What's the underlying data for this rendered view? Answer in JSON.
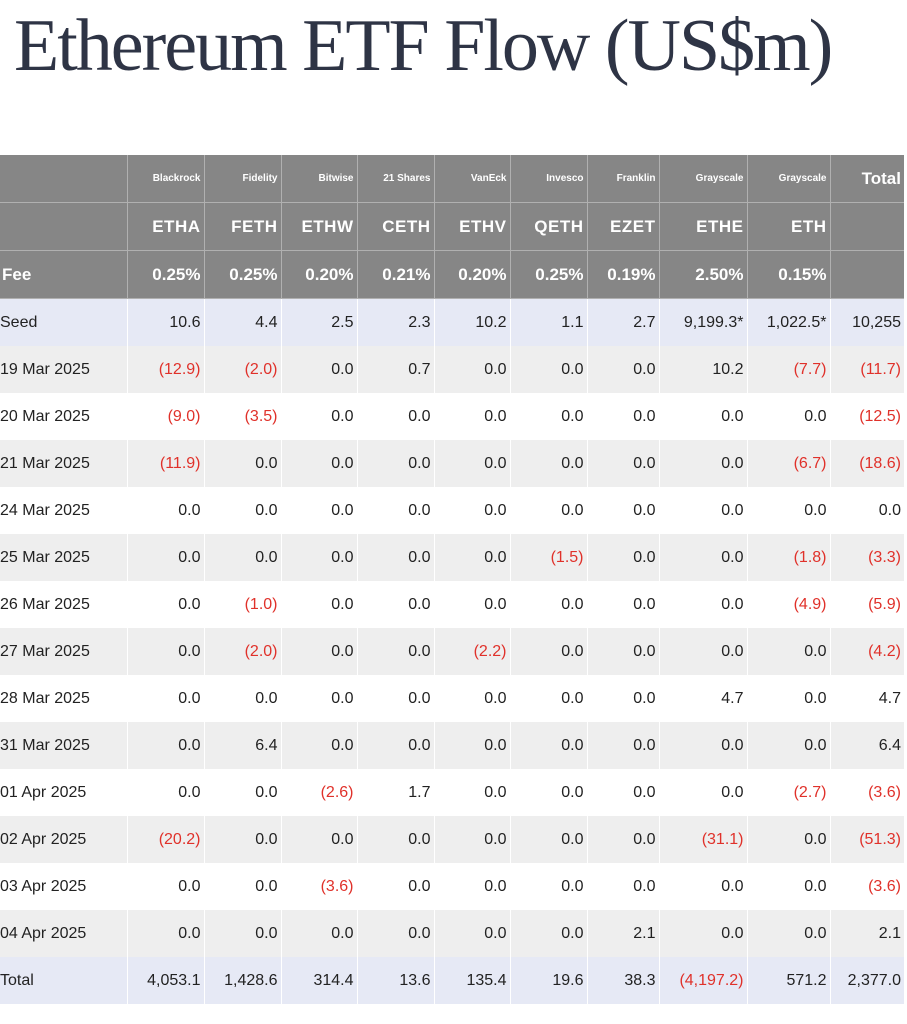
{
  "title": "Ethereum ETF Flow (US$m)",
  "header": {
    "issuers": [
      "",
      "Blackrock",
      "Fidelity",
      "Bitwise",
      "21 Shares",
      "VanEck",
      "Invesco",
      "Franklin",
      "Grayscale",
      "Grayscale",
      "Total"
    ],
    "tickers": [
      "",
      "ETHA",
      "FETH",
      "ETHW",
      "CETH",
      "ETHV",
      "QETH",
      "EZET",
      "ETHE",
      "ETH",
      ""
    ],
    "fees": [
      "Fee",
      "0.25%",
      "0.25%",
      "0.20%",
      "0.21%",
      "0.20%",
      "0.25%",
      "0.19%",
      "2.50%",
      "0.15%",
      ""
    ]
  },
  "rows": [
    [
      "Seed",
      "10.6",
      "4.4",
      "2.5",
      "2.3",
      "10.2",
      "1.1",
      "2.7",
      "9,199.3*",
      "1,022.5*",
      "10,255"
    ],
    [
      "19 Mar 2025",
      "(12.9)",
      "(2.0)",
      "0.0",
      "0.7",
      "0.0",
      "0.0",
      "0.0",
      "10.2",
      "(7.7)",
      "(11.7)"
    ],
    [
      "20 Mar 2025",
      "(9.0)",
      "(3.5)",
      "0.0",
      "0.0",
      "0.0",
      "0.0",
      "0.0",
      "0.0",
      "0.0",
      "(12.5)"
    ],
    [
      "21 Mar 2025",
      "(11.9)",
      "0.0",
      "0.0",
      "0.0",
      "0.0",
      "0.0",
      "0.0",
      "0.0",
      "(6.7)",
      "(18.6)"
    ],
    [
      "24 Mar 2025",
      "0.0",
      "0.0",
      "0.0",
      "0.0",
      "0.0",
      "0.0",
      "0.0",
      "0.0",
      "0.0",
      "0.0"
    ],
    [
      "25 Mar 2025",
      "0.0",
      "0.0",
      "0.0",
      "0.0",
      "0.0",
      "(1.5)",
      "0.0",
      "0.0",
      "(1.8)",
      "(3.3)"
    ],
    [
      "26 Mar 2025",
      "0.0",
      "(1.0)",
      "0.0",
      "0.0",
      "0.0",
      "0.0",
      "0.0",
      "0.0",
      "(4.9)",
      "(5.9)"
    ],
    [
      "27 Mar 2025",
      "0.0",
      "(2.0)",
      "0.0",
      "0.0",
      "(2.2)",
      "0.0",
      "0.0",
      "0.0",
      "0.0",
      "(4.2)"
    ],
    [
      "28 Mar 2025",
      "0.0",
      "0.0",
      "0.0",
      "0.0",
      "0.0",
      "0.0",
      "0.0",
      "4.7",
      "0.0",
      "4.7"
    ],
    [
      "31 Mar 2025",
      "0.0",
      "6.4",
      "0.0",
      "0.0",
      "0.0",
      "0.0",
      "0.0",
      "0.0",
      "0.0",
      "6.4"
    ],
    [
      "01 Apr 2025",
      "0.0",
      "0.0",
      "(2.6)",
      "1.7",
      "0.0",
      "0.0",
      "0.0",
      "0.0",
      "(2.7)",
      "(3.6)"
    ],
    [
      "02 Apr 2025",
      "(20.2)",
      "0.0",
      "0.0",
      "0.0",
      "0.0",
      "0.0",
      "0.0",
      "(31.1)",
      "0.0",
      "(51.3)"
    ],
    [
      "03 Apr 2025",
      "0.0",
      "0.0",
      "(3.6)",
      "0.0",
      "0.0",
      "0.0",
      "0.0",
      "0.0",
      "0.0",
      "(3.6)"
    ],
    [
      "04 Apr 2025",
      "0.0",
      "0.0",
      "0.0",
      "0.0",
      "0.0",
      "0.0",
      "2.1",
      "0.0",
      "0.0",
      "2.1"
    ],
    [
      "Total",
      "4,053.1",
      "1,428.6",
      "314.4",
      "13.6",
      "135.4",
      "19.6",
      "38.3",
      "(4,197.2)",
      "571.2",
      "2,377.0"
    ]
  ],
  "colors": {
    "header_bg": "#868686",
    "header_text": "#ffffff",
    "negative": "#e0312a",
    "highlight_row": "#e6e9f5",
    "alt_row": "#eeeeee",
    "title": "#2e3445"
  }
}
